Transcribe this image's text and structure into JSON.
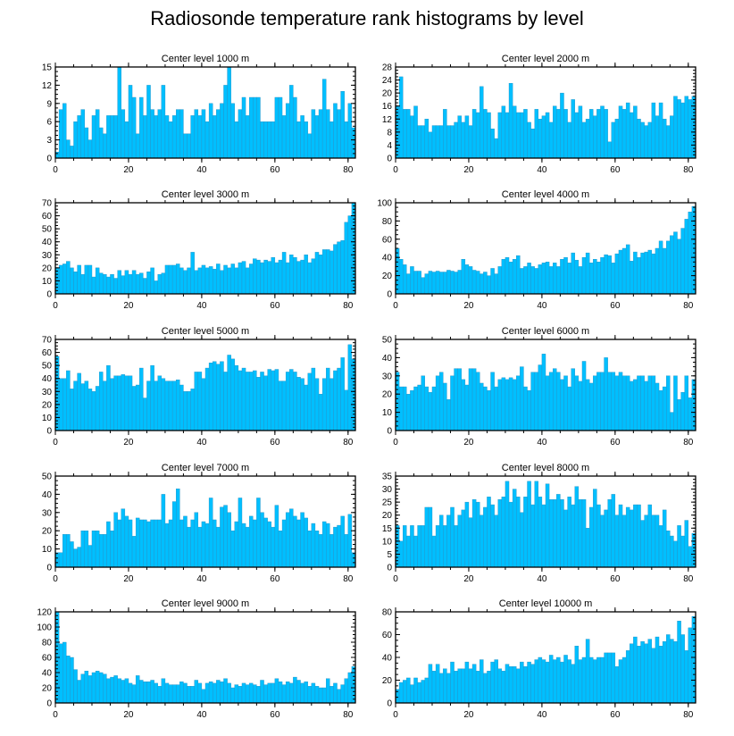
{
  "title": "Radiosonde temperature rank histograms by level",
  "chart_data": [
    {
      "type": "bar",
      "title": "Center level 1000 m",
      "xlim": [
        0,
        82
      ],
      "ylim": [
        0,
        15
      ],
      "xticks": [
        0,
        20,
        40,
        60,
        80
      ],
      "yticks": [
        0,
        3,
        6,
        9,
        12,
        15
      ],
      "values": [
        1,
        8,
        9,
        3,
        2,
        6,
        7,
        8,
        5,
        3,
        7,
        8,
        5,
        4,
        7,
        7,
        7,
        15,
        8,
        6,
        12,
        10,
        4,
        10,
        7,
        12,
        8,
        7,
        8,
        12,
        7,
        6,
        7,
        8,
        8,
        4,
        4,
        7,
        8,
        7,
        8,
        6,
        9,
        7,
        8,
        9,
        12,
        15,
        9,
        6,
        8,
        10,
        7,
        10,
        10,
        10,
        6,
        6,
        6,
        6,
        10,
        10,
        7,
        9,
        12,
        10,
        6,
        7,
        6,
        4,
        8,
        7,
        8,
        13,
        8,
        6,
        9,
        8,
        11,
        6,
        9,
        5
      ]
    },
    {
      "type": "bar",
      "title": "Center level 2000 m",
      "xlim": [
        0,
        82
      ],
      "ylim": [
        0,
        28
      ],
      "xticks": [
        0,
        20,
        40,
        60,
        80
      ],
      "yticks": [
        0,
        4,
        8,
        12,
        16,
        20,
        24,
        28
      ],
      "values": [
        16,
        25,
        15,
        15,
        13,
        16,
        10,
        10,
        12,
        8,
        10,
        10,
        10,
        15,
        10,
        10,
        11,
        13,
        11,
        13,
        10,
        15,
        14,
        22,
        15,
        14,
        9,
        6,
        14,
        16,
        14,
        23,
        16,
        14,
        14,
        15,
        11,
        9,
        15,
        12,
        13,
        14,
        11,
        16,
        15,
        20,
        15,
        11,
        18,
        14,
        16,
        11,
        12,
        15,
        13,
        15,
        16,
        15,
        5,
        11,
        12,
        16,
        15,
        17,
        14,
        16,
        12,
        11,
        10,
        11,
        17,
        13,
        17,
        12,
        10,
        13,
        19,
        18,
        17,
        19,
        18,
        19
      ]
    },
    {
      "type": "bar",
      "title": "Center level 3000 m",
      "xlim": [
        0,
        82
      ],
      "ylim": [
        0,
        70
      ],
      "xticks": [
        0,
        20,
        40,
        60,
        80
      ],
      "yticks": [
        0,
        10,
        20,
        30,
        40,
        50,
        60,
        70
      ],
      "values": [
        20,
        22,
        23,
        25,
        20,
        17,
        22,
        15,
        22,
        22,
        13,
        20,
        16,
        15,
        13,
        15,
        12,
        18,
        14,
        18,
        15,
        18,
        15,
        16,
        12,
        17,
        20,
        10,
        15,
        16,
        22,
        22,
        22,
        23,
        20,
        18,
        20,
        32,
        18,
        20,
        22,
        20,
        21,
        19,
        23,
        18,
        22,
        20,
        23,
        20,
        24,
        25,
        20,
        23,
        27,
        26,
        24,
        26,
        25,
        28,
        24,
        26,
        32,
        24,
        30,
        28,
        25,
        26,
        30,
        24,
        27,
        32,
        30,
        34,
        34,
        33,
        38,
        40,
        41,
        55,
        60,
        70
      ]
    },
    {
      "type": "bar",
      "title": "Center level 4000 m",
      "xlim": [
        0,
        82
      ],
      "ylim": [
        0,
        100
      ],
      "xticks": [
        0,
        20,
        40,
        60,
        80
      ],
      "yticks": [
        0,
        20,
        40,
        60,
        80,
        100
      ],
      "values": [
        50,
        38,
        32,
        22,
        30,
        25,
        25,
        18,
        22,
        25,
        24,
        25,
        24,
        24,
        26,
        25,
        24,
        26,
        38,
        32,
        30,
        26,
        25,
        22,
        24,
        20,
        28,
        22,
        30,
        38,
        40,
        35,
        38,
        42,
        28,
        30,
        34,
        30,
        28,
        32,
        34,
        35,
        30,
        34,
        30,
        38,
        40,
        34,
        45,
        37,
        30,
        40,
        45,
        34,
        38,
        35,
        40,
        43,
        42,
        34,
        44,
        48,
        50,
        54,
        36,
        46,
        40,
        45,
        46,
        48,
        44,
        50,
        58,
        50,
        58,
        64,
        68,
        60,
        72,
        82,
        90,
        96
      ]
    },
    {
      "type": "bar",
      "title": "Center level 5000 m",
      "xlim": [
        0,
        82
      ],
      "ylim": [
        0,
        70
      ],
      "xticks": [
        0,
        20,
        40,
        60,
        80
      ],
      "yticks": [
        0,
        10,
        20,
        30,
        40,
        50,
        60,
        70
      ],
      "values": [
        57,
        40,
        40,
        46,
        32,
        38,
        44,
        36,
        38,
        32,
        30,
        34,
        45,
        38,
        50,
        40,
        42,
        42,
        43,
        42,
        42,
        34,
        35,
        48,
        25,
        38,
        50,
        38,
        42,
        40,
        38,
        38,
        38,
        39,
        35,
        30,
        30,
        32,
        45,
        45,
        40,
        48,
        52,
        53,
        51,
        53,
        45,
        58,
        55,
        50,
        46,
        48,
        45,
        45,
        46,
        41,
        45,
        42,
        47,
        46,
        47,
        38,
        38,
        45,
        47,
        45,
        41,
        40,
        35,
        44,
        48,
        40,
        28,
        40,
        48,
        40,
        46,
        48,
        56,
        31,
        66,
        55
      ]
    },
    {
      "type": "bar",
      "title": "Center level 6000 m",
      "xlim": [
        0,
        82
      ],
      "ylim": [
        0,
        50
      ],
      "xticks": [
        0,
        20,
        40,
        60,
        80
      ],
      "yticks": [
        0,
        10,
        20,
        30,
        40,
        50
      ],
      "values": [
        32,
        24,
        24,
        20,
        22,
        24,
        25,
        30,
        24,
        21,
        24,
        30,
        32,
        26,
        17,
        30,
        34,
        34,
        28,
        25,
        34,
        34,
        32,
        26,
        24,
        22,
        32,
        24,
        28,
        29,
        28,
        29,
        28,
        30,
        35,
        24,
        22,
        32,
        32,
        36,
        42,
        30,
        32,
        34,
        32,
        28,
        30,
        24,
        34,
        30,
        27,
        38,
        28,
        26,
        30,
        32,
        32,
        40,
        32,
        32,
        30,
        32,
        30,
        30,
        27,
        28,
        30,
        30,
        27,
        30,
        30,
        26,
        22,
        24,
        30,
        10,
        30,
        17,
        21,
        30,
        18,
        28
      ]
    },
    {
      "type": "bar",
      "title": "Center level 7000 m",
      "xlim": [
        0,
        82
      ],
      "ylim": [
        0,
        50
      ],
      "xticks": [
        0,
        20,
        40,
        60,
        80
      ],
      "yticks": [
        0,
        10,
        20,
        30,
        40,
        50
      ],
      "values": [
        8,
        8,
        18,
        18,
        14,
        10,
        11,
        20,
        20,
        12,
        20,
        20,
        18,
        18,
        25,
        20,
        30,
        26,
        32,
        28,
        26,
        17,
        27,
        26,
        26,
        25,
        26,
        26,
        26,
        40,
        24,
        26,
        36,
        43,
        26,
        28,
        22,
        26,
        30,
        22,
        25,
        24,
        38,
        26,
        22,
        33,
        34,
        30,
        20,
        25,
        38,
        24,
        22,
        28,
        26,
        38,
        30,
        27,
        25,
        22,
        34,
        20,
        26,
        30,
        32,
        28,
        26,
        30,
        27,
        20,
        24,
        20,
        18,
        25,
        24,
        18,
        22,
        23,
        28,
        18,
        29,
        8
      ]
    },
    {
      "type": "bar",
      "title": "Center level 8000 m",
      "xlim": [
        0,
        82
      ],
      "ylim": [
        0,
        35
      ],
      "xticks": [
        0,
        20,
        40,
        60,
        80
      ],
      "yticks": [
        0,
        5,
        10,
        15,
        20,
        25,
        30,
        35
      ],
      "values": [
        16,
        10,
        16,
        12,
        16,
        12,
        16,
        16,
        23,
        23,
        12,
        16,
        20,
        16,
        20,
        23,
        16,
        20,
        22,
        25,
        19,
        26,
        25,
        20,
        23,
        27,
        24,
        20,
        26,
        27,
        33,
        25,
        30,
        27,
        21,
        27,
        33,
        24,
        33,
        27,
        24,
        32,
        26,
        26,
        28,
        26,
        22,
        27,
        24,
        31,
        26,
        26,
        15,
        23,
        30,
        24,
        20,
        22,
        26,
        28,
        20,
        24,
        20,
        23,
        22,
        24,
        24,
        18,
        20,
        24,
        20,
        20,
        16,
        22,
        14,
        12,
        10,
        16,
        12,
        18,
        8,
        13
      ]
    },
    {
      "type": "bar",
      "title": "Center level 9000 m",
      "xlim": [
        0,
        82
      ],
      "ylim": [
        0,
        120
      ],
      "xticks": [
        0,
        20,
        40,
        60,
        80
      ],
      "yticks": [
        0,
        20,
        40,
        60,
        80,
        100,
        120
      ],
      "values": [
        120,
        78,
        80,
        62,
        60,
        44,
        30,
        38,
        42,
        36,
        40,
        42,
        40,
        38,
        32,
        34,
        36,
        32,
        30,
        32,
        26,
        24,
        36,
        30,
        28,
        28,
        30,
        26,
        22,
        32,
        26,
        24,
        24,
        24,
        28,
        26,
        22,
        22,
        30,
        26,
        18,
        26,
        28,
        26,
        30,
        28,
        32,
        26,
        20,
        24,
        22,
        26,
        24,
        26,
        24,
        22,
        30,
        24,
        26,
        26,
        32,
        28,
        24,
        28,
        26,
        34,
        30,
        26,
        28,
        22,
        26,
        22,
        20,
        20,
        32,
        22,
        26,
        18,
        24,
        32,
        40,
        48
      ]
    },
    {
      "type": "bar",
      "title": "Center level 10000 m",
      "xlim": [
        0,
        82
      ],
      "ylim": [
        0,
        80
      ],
      "xticks": [
        0,
        20,
        40,
        60,
        80
      ],
      "yticks": [
        0,
        20,
        40,
        60,
        80
      ],
      "values": [
        12,
        18,
        20,
        22,
        16,
        22,
        18,
        20,
        22,
        34,
        28,
        34,
        26,
        30,
        26,
        36,
        28,
        30,
        30,
        36,
        30,
        34,
        28,
        38,
        26,
        28,
        36,
        38,
        30,
        28,
        34,
        32,
        32,
        30,
        36,
        32,
        36,
        34,
        38,
        40,
        38,
        36,
        42,
        38,
        40,
        36,
        42,
        38,
        34,
        50,
        38,
        40,
        56,
        40,
        38,
        40,
        40,
        44,
        44,
        44,
        32,
        38,
        40,
        46,
        52,
        58,
        50,
        54,
        52,
        56,
        48,
        58,
        50,
        54,
        60,
        56,
        54,
        72,
        60,
        46,
        66,
        76
      ]
    }
  ]
}
